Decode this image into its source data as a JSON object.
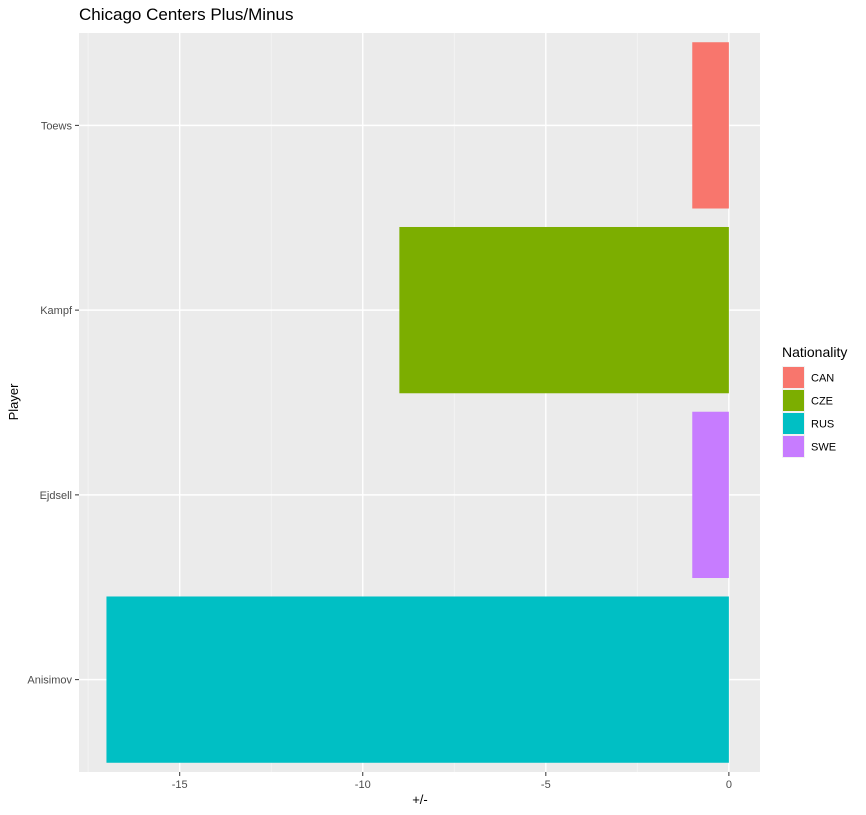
{
  "chart_data": {
    "type": "bar",
    "orientation": "horizontal",
    "title": "Chicago Centers Plus/Minus",
    "xlabel": "+/-",
    "ylabel": "Player",
    "xlim": [
      -17.75,
      0.85
    ],
    "xticks": [
      -15,
      -10,
      -5,
      0
    ],
    "xtick_labels": [
      "-15",
      "-10",
      "-5",
      "0"
    ],
    "grid": true,
    "categories": [
      "Toews",
      "Kampf",
      "Ejdsell",
      "Anisimov"
    ],
    "values": [
      -1,
      -9,
      -1,
      -17
    ],
    "nationality": [
      "CAN",
      "CZE",
      "SWE",
      "RUS"
    ],
    "legend": {
      "title": "Nationality",
      "placement": "right",
      "entries": [
        {
          "label": "CAN",
          "color": "#F8766D"
        },
        {
          "label": "CZE",
          "color": "#7CAE00"
        },
        {
          "label": "RUS",
          "color": "#00BFC4"
        },
        {
          "label": "SWE",
          "color": "#C77CFF"
        }
      ]
    },
    "panel_background": "#EBEBEB"
  }
}
